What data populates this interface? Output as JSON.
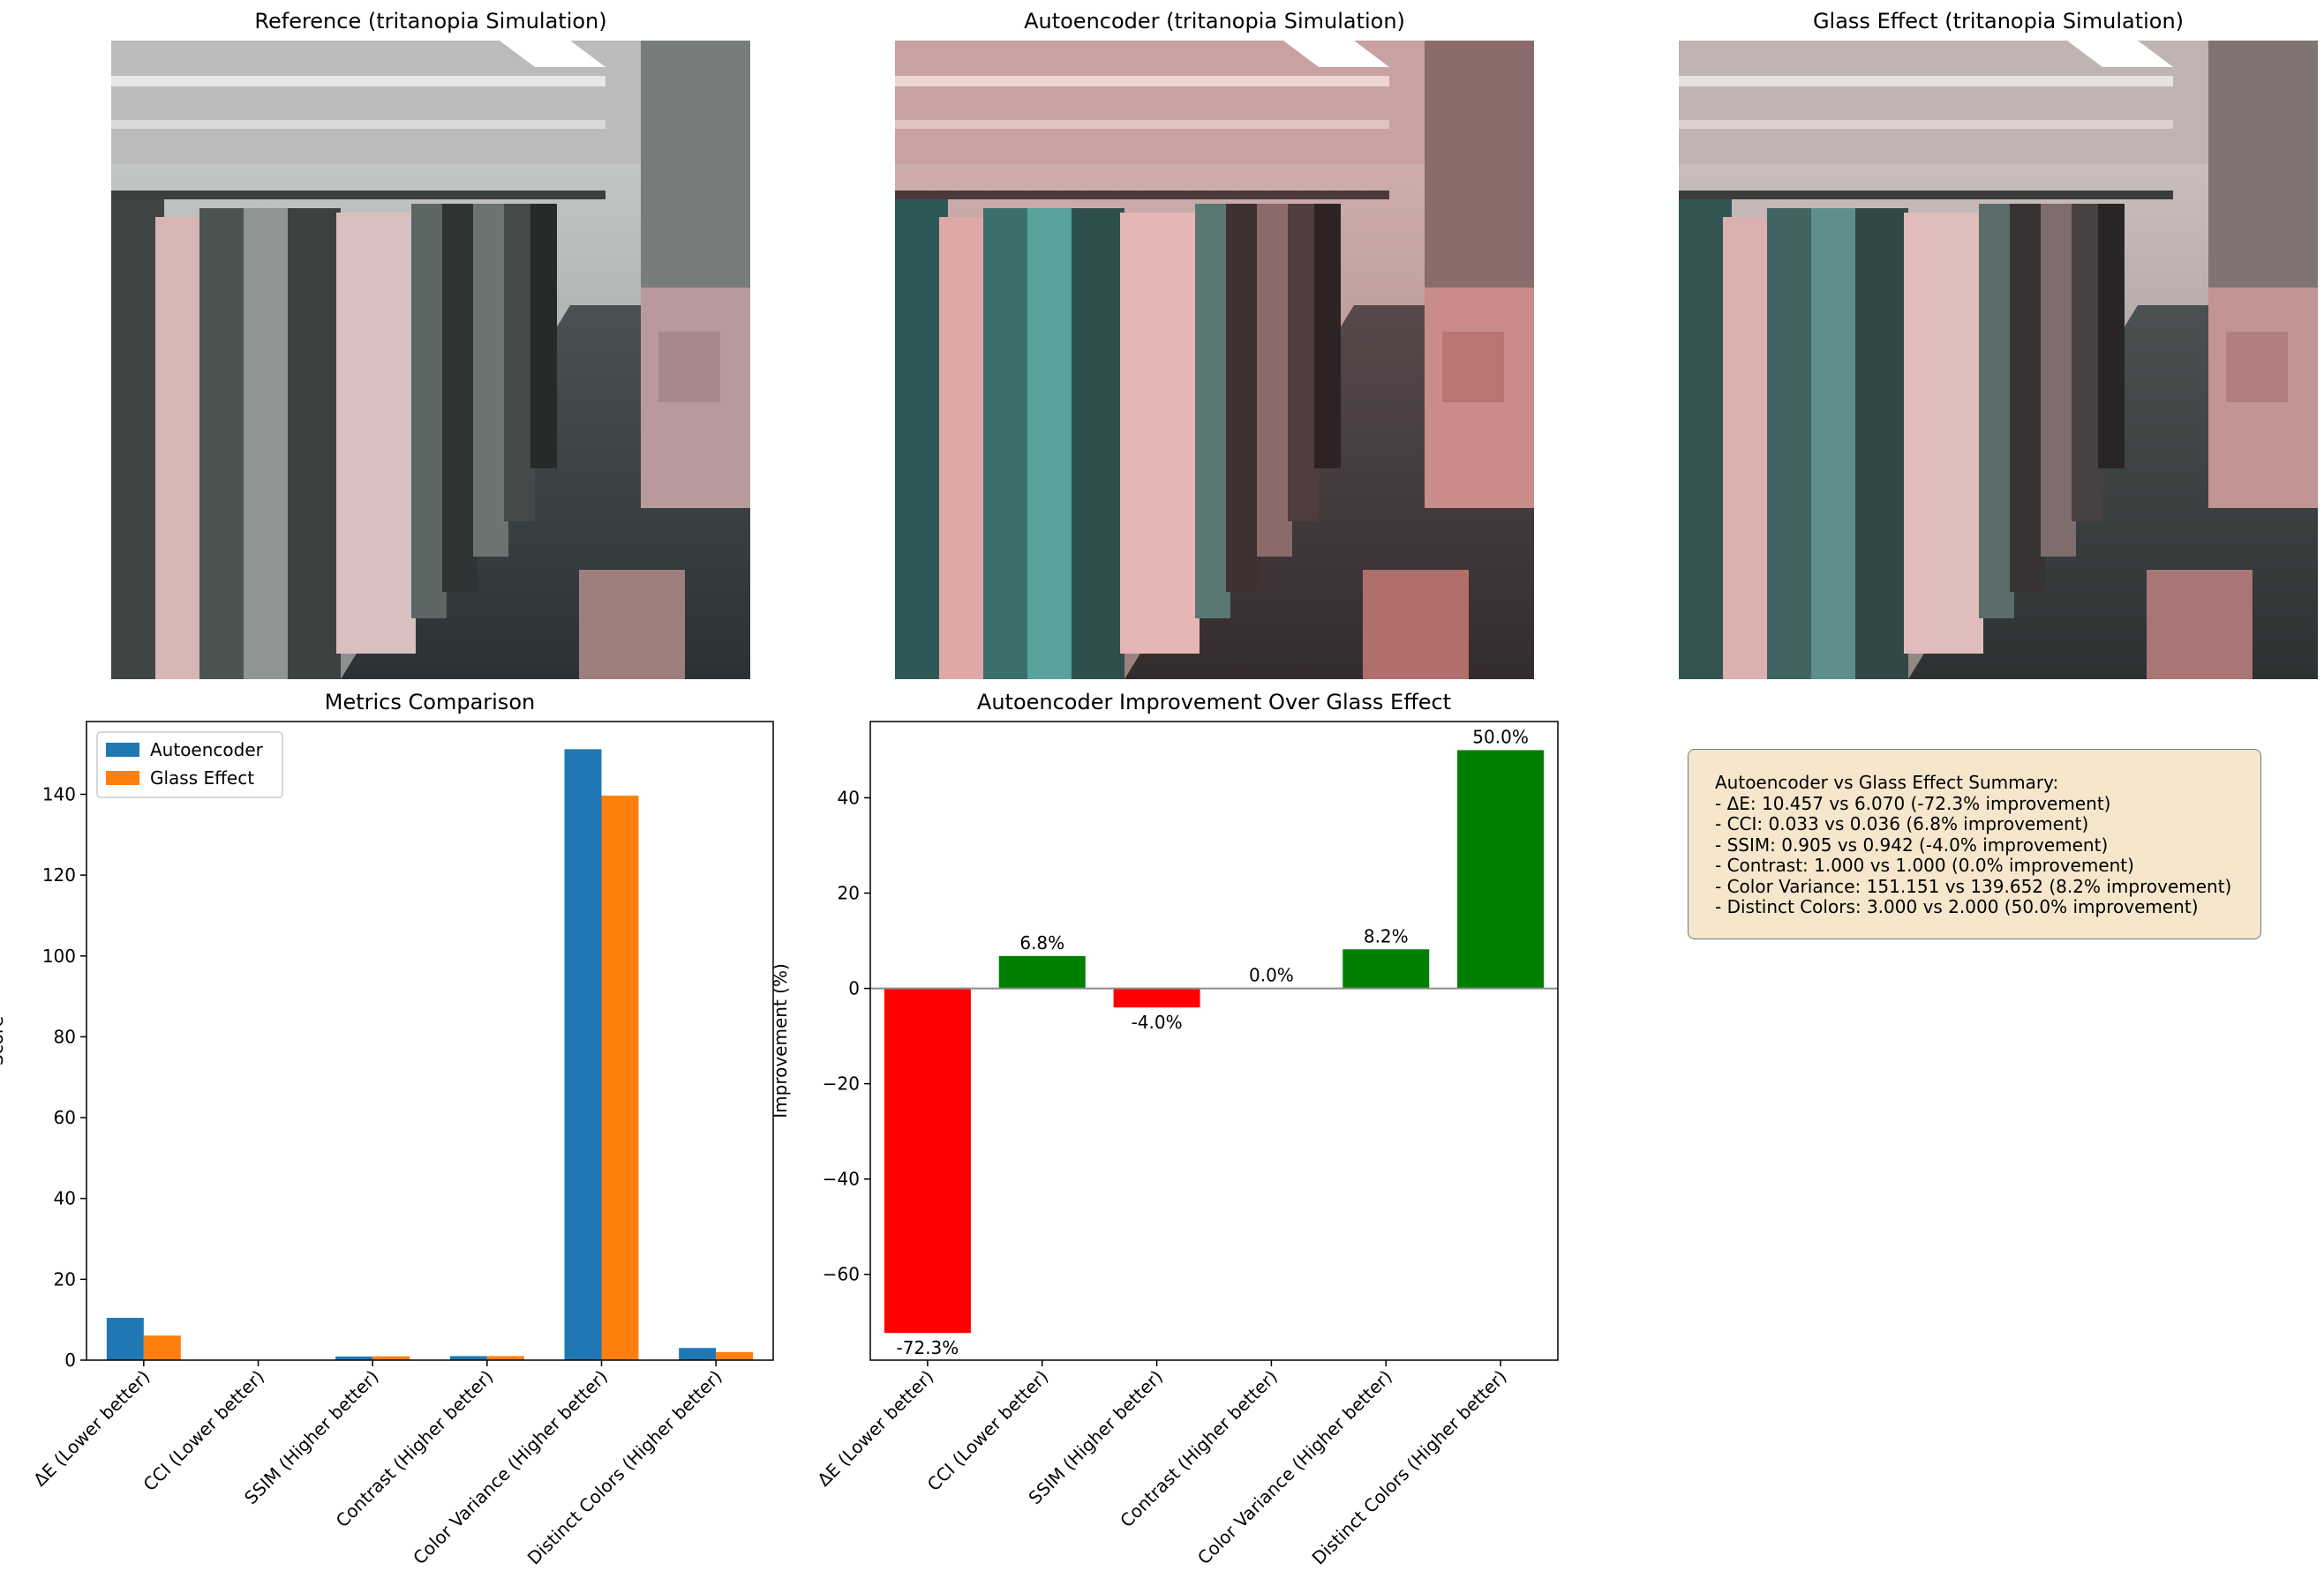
{
  "panels": {
    "reference_title": "Reference (tritanopia Simulation)",
    "autoencoder_title": "Autoencoder (tritanopia Simulation)",
    "glass_title": "Glass Effect (tritanopia Simulation)"
  },
  "summary": {
    "heading": "Autoencoder vs Glass Effect Summary:",
    "lines": [
      "- ΔE: 10.457 vs 6.070 (-72.3% improvement)",
      "- CCI: 0.033 vs 0.036 (6.8% improvement)",
      "- SSIM: 0.905 vs 0.942 (-4.0% improvement)",
      "- Contrast: 1.000 vs 1.000 (0.0% improvement)",
      "- Color Variance: 151.151 vs 139.652 (8.2% improvement)",
      "- Distinct Colors: 3.000 vs 2.000 (50.0% improvement)"
    ]
  },
  "colors": {
    "autoencoder": "#1f77b4",
    "glass": "#ff7f0e",
    "positive": "#008000",
    "negative": "#ff0000"
  },
  "chart_data": [
    {
      "type": "bar",
      "title": "Metrics Comparison",
      "ylabel": "Score",
      "ylim": [
        0,
        158
      ],
      "yticks": [
        0,
        20,
        40,
        60,
        80,
        100,
        120,
        140
      ],
      "categories": [
        "ΔE (Lower better)",
        "CCI (Lower better)",
        "SSIM (Higher better)",
        "Contrast (Higher better)",
        "Color Variance (Higher better)",
        "Distinct Colors (Higher better)"
      ],
      "series": [
        {
          "name": "Autoencoder",
          "values": [
            10.457,
            0.033,
            0.905,
            1.0,
            151.151,
            3.0
          ]
        },
        {
          "name": "Glass Effect",
          "values": [
            6.07,
            0.036,
            0.942,
            1.0,
            139.652,
            2.0
          ]
        }
      ],
      "legend": "top-left"
    },
    {
      "type": "bar",
      "title": "Autoencoder Improvement Over Glass Effect",
      "ylabel": "Improvement (%)",
      "ylim": [
        -78,
        56
      ],
      "yticks": [
        -60,
        -40,
        -20,
        0,
        20,
        40
      ],
      "categories": [
        "ΔE (Lower better)",
        "CCI (Lower better)",
        "SSIM (Higher better)",
        "Contrast (Higher better)",
        "Color Variance (Higher better)",
        "Distinct Colors (Higher better)"
      ],
      "values": [
        -72.3,
        6.8,
        -4.0,
        0.0,
        8.2,
        50.0
      ],
      "labels": [
        "-72.3%",
        "6.8%",
        "-4.0%",
        "0.0%",
        "8.2%",
        "50.0%"
      ]
    }
  ]
}
